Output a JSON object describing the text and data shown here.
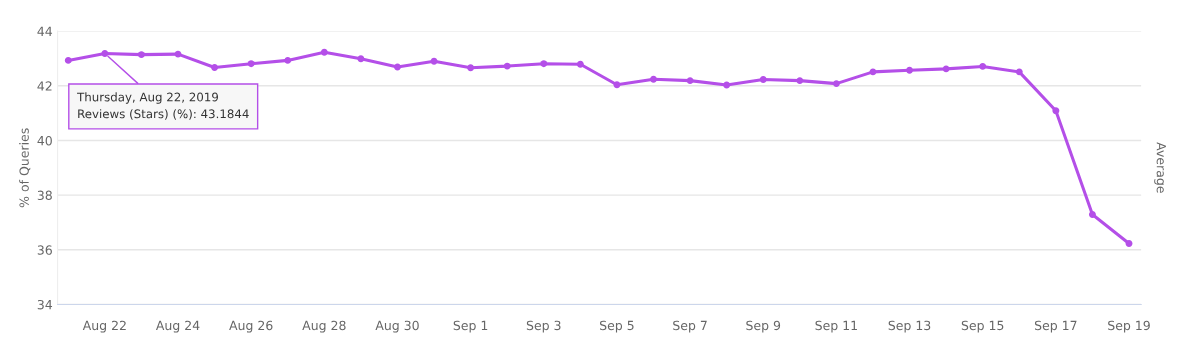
{
  "chart_data": {
    "type": "line",
    "ylabel": "% of Queries",
    "y2label": "Average",
    "x": [
      "2019-08-21",
      "2019-08-22",
      "2019-08-23",
      "2019-08-24",
      "2019-08-25",
      "2019-08-26",
      "2019-08-27",
      "2019-08-28",
      "2019-08-29",
      "2019-08-30",
      "2019-08-31",
      "2019-09-01",
      "2019-09-02",
      "2019-09-03",
      "2019-09-04",
      "2019-09-05",
      "2019-09-06",
      "2019-09-07",
      "2019-09-08",
      "2019-09-09",
      "2019-09-10",
      "2019-09-11",
      "2019-09-12",
      "2019-09-13",
      "2019-09-14",
      "2019-09-15",
      "2019-09-16",
      "2019-09-17",
      "2019-09-18",
      "2019-09-19"
    ],
    "series": [
      {
        "color": "#b44fe8",
        "values": [
          42.93,
          43.1844,
          43.14,
          43.16,
          42.67,
          42.81,
          42.93,
          43.23,
          42.99,
          42.69,
          42.9,
          42.66,
          42.72,
          42.81,
          42.79,
          42.04,
          42.24,
          42.19,
          42.03,
          42.23,
          42.19,
          42.08,
          42.51,
          42.57,
          42.62,
          42.71,
          42.51,
          41.09,
          37.29,
          36.23
        ]
      }
    ],
    "annotations": [
      {
        "text": "Thursday, Aug 22, 2019\nReviews (Stars) (%): 43.1844",
        "x": "2019-08-22",
        "y": 43.1844
      }
    ],
    "xlim": [
      "2019-08-20T17:00",
      "2019-09-19T08:00"
    ],
    "xticks": [
      {
        "value": "2019-08-22",
        "label": "Aug 22"
      },
      {
        "value": "2019-08-24",
        "label": "Aug 24"
      },
      {
        "value": "2019-08-26",
        "label": "Aug 26"
      },
      {
        "value": "2019-08-28",
        "label": "Aug 28"
      },
      {
        "value": "2019-08-30",
        "label": "Aug 30"
      },
      {
        "value": "2019-09-01",
        "label": "Sep 1"
      },
      {
        "value": "2019-09-03",
        "label": "Sep 3"
      },
      {
        "value": "2019-09-05",
        "label": "Sep 5"
      },
      {
        "value": "2019-09-07",
        "label": "Sep 7"
      },
      {
        "value": "2019-09-09",
        "label": "Sep 9"
      },
      {
        "value": "2019-09-11",
        "label": "Sep 11"
      },
      {
        "value": "2019-09-13",
        "label": "Sep 13"
      },
      {
        "value": "2019-09-15",
        "label": "Sep 15"
      },
      {
        "value": "2019-09-17",
        "label": "Sep 17"
      },
      {
        "value": "2019-09-19",
        "label": "Sep 19"
      }
    ],
    "ylim": [
      34,
      44
    ],
    "yticks": [
      34,
      36,
      38,
      40,
      42,
      44
    ],
    "grid": "y",
    "marker": "circle",
    "line_style": "solid",
    "legend": false
  }
}
